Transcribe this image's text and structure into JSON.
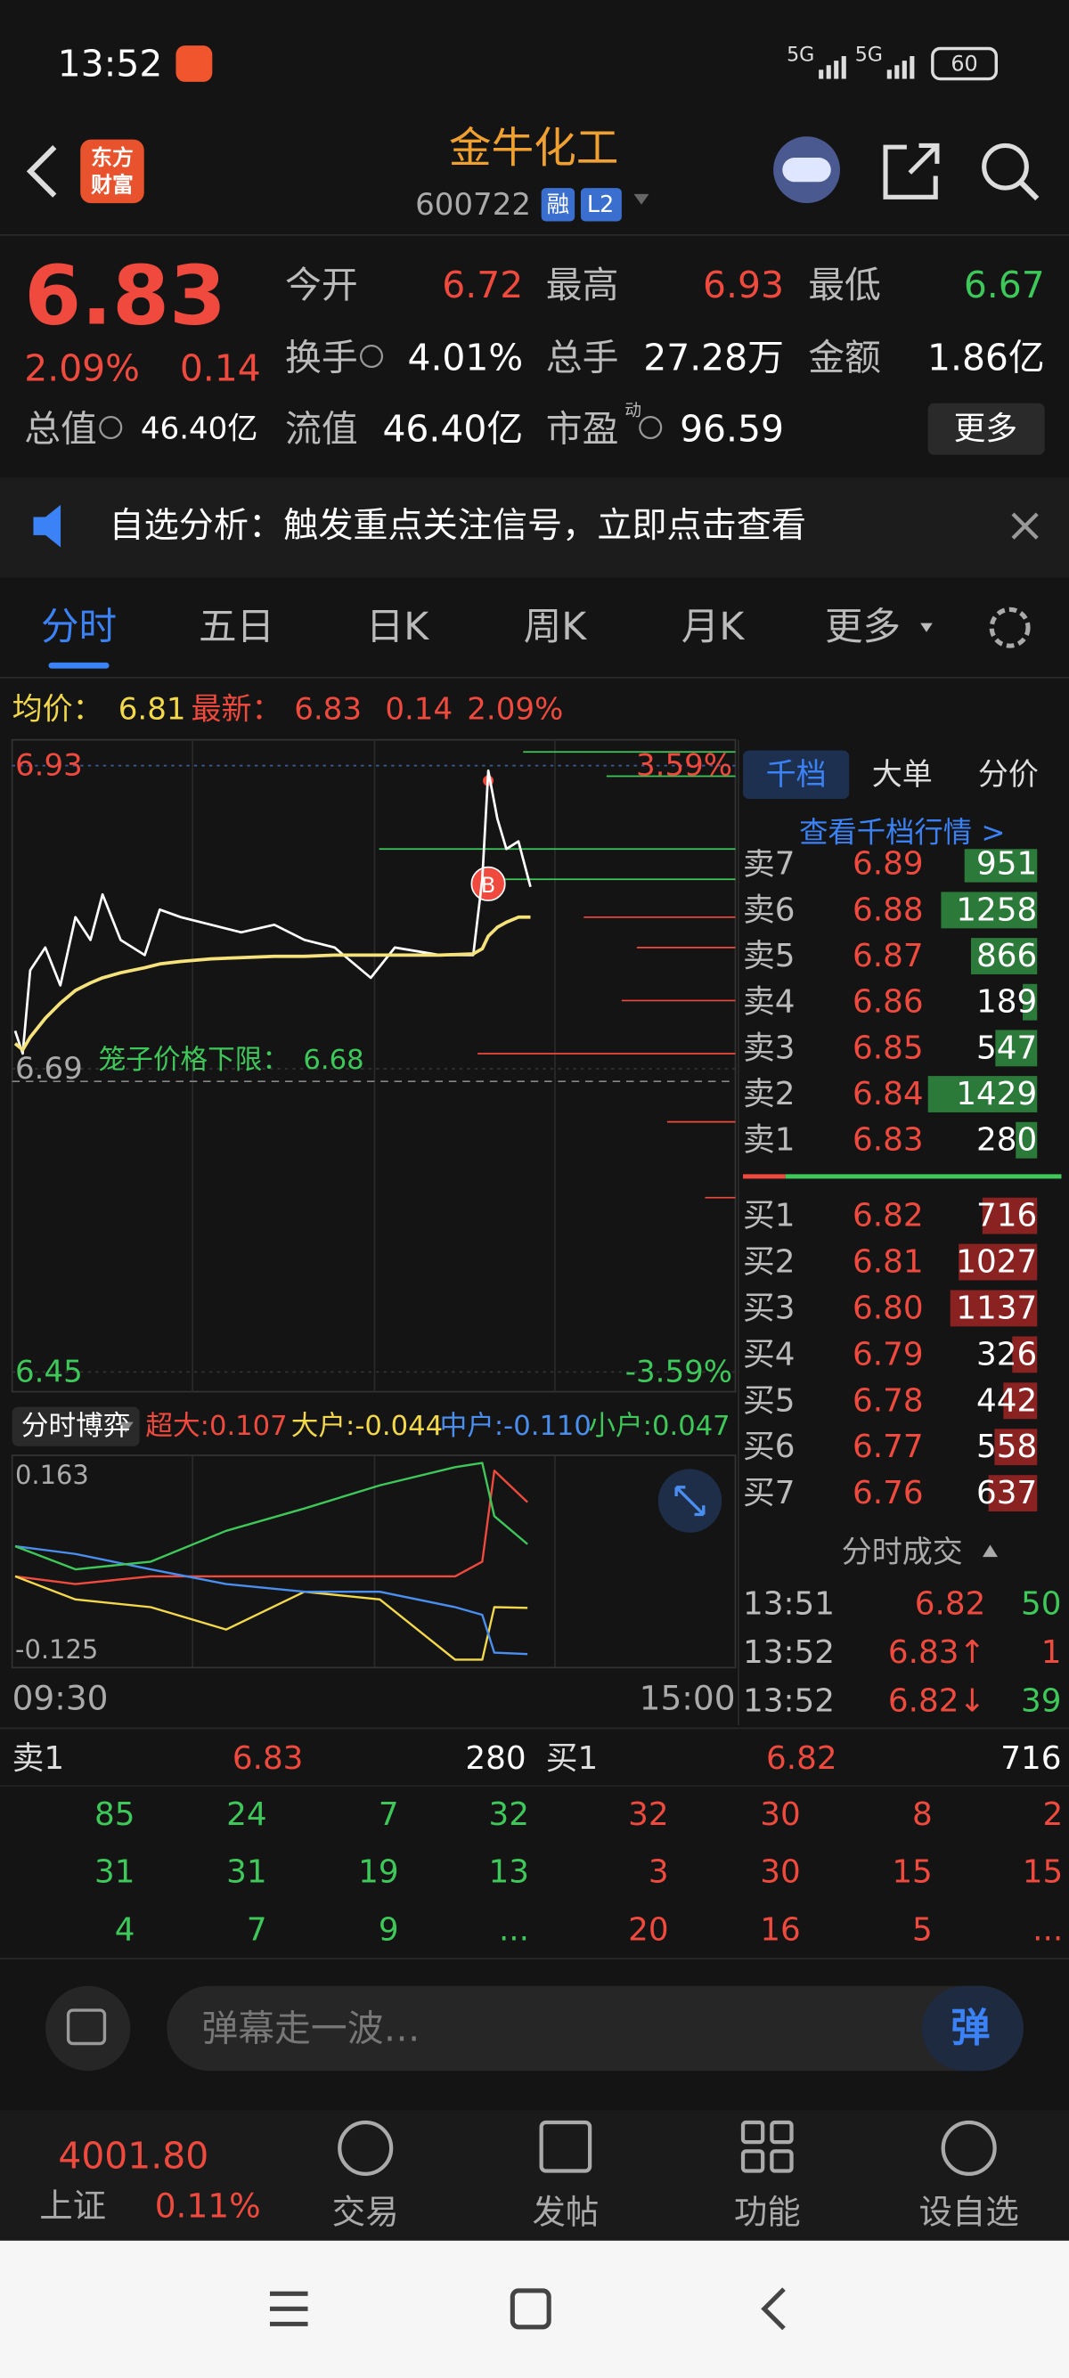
{
  "status_bar": {
    "time": "13:52",
    "network": [
      "5G",
      "5G"
    ],
    "battery": "60"
  },
  "header": {
    "logo": [
      "东方",
      "财富"
    ],
    "title": "金牛化工",
    "code": "600722",
    "badges": [
      "融",
      "L2"
    ]
  },
  "quote": {
    "price": "6.83",
    "change_pct": "2.09%",
    "change": "0.14",
    "fields": [
      {
        "label": "今开",
        "value": "6.72",
        "color": "#f04a3e"
      },
      {
        "label": "最高",
        "value": "6.93",
        "color": "#f04a3e"
      },
      {
        "label": "最低",
        "value": "6.67",
        "color": "#3ec85a"
      },
      {
        "label": "换手",
        "value": "4.01%",
        "color": "#ffffff",
        "info": true
      },
      {
        "label": "总手",
        "value": "27.28万",
        "color": "#ffffff"
      },
      {
        "label": "金额",
        "value": "1.86亿",
        "color": "#ffffff"
      },
      {
        "label": "总值",
        "value": "46.40亿",
        "color": "#ffffff",
        "info": true
      },
      {
        "label": "流值",
        "value": "46.40亿",
        "color": "#ffffff"
      },
      {
        "label": "市盈",
        "sup": "动",
        "value": "96.59",
        "color": "#ffffff",
        "info": true
      }
    ],
    "more": "更多"
  },
  "notice": "自选分析：触发重点关注信号，立即点击查看",
  "tabs": {
    "items": [
      "分时",
      "五日",
      "日K",
      "周K",
      "月K",
      "更多"
    ],
    "active": 0
  },
  "summary": [
    {
      "text": "均价：",
      "color": "#f2d84a"
    },
    {
      "text": "6.81",
      "color": "#f2d84a"
    },
    {
      "text": "最新：",
      "color": "#f04a3e"
    },
    {
      "text": "6.83",
      "color": "#f04a3e"
    },
    {
      "text": "0.14",
      "color": "#f04a3e"
    },
    {
      "text": "2.09%",
      "color": "#f04a3e"
    }
  ],
  "price_chart": {
    "type": "line",
    "xlim": [
      0,
      240
    ],
    "x": [
      1,
      3.5,
      6,
      11,
      16,
      21,
      26,
      30,
      36,
      44,
      49,
      56,
      66,
      76,
      87,
      97,
      107,
      119,
      127,
      142,
      153,
      156,
      158,
      161,
      164,
      168,
      172
    ],
    "ylim": [
      6.45,
      6.93
    ],
    "yticks": [
      6.45,
      6.69,
      6.93
    ],
    "y2lim": [
      -3.59,
      3.59
    ],
    "y2ticks": [
      {
        "value": -3.59,
        "label": "-3.59%"
      },
      {
        "value": 3.59,
        "label": "3.59%"
      }
    ],
    "series": [
      {
        "color": "#ffffff",
        "values": [
          6.72,
          6.702,
          6.768,
          6.786,
          6.756,
          6.81,
          6.792,
          6.828,
          6.792,
          6.78,
          6.816,
          6.81,
          6.804,
          6.798,
          6.804,
          6.792,
          6.786,
          6.762,
          6.786,
          6.78,
          6.78,
          6.84,
          6.926,
          6.888,
          6.864,
          6.87,
          6.834
        ]
      },
      {
        "color": "#f5e27a",
        "values": [
          6.71,
          6.705,
          6.715,
          6.73,
          6.742,
          6.752,
          6.758,
          6.762,
          6.766,
          6.77,
          6.773,
          6.775,
          6.777,
          6.778,
          6.779,
          6.779,
          6.78,
          6.78,
          6.78,
          6.78,
          6.781,
          6.785,
          6.795,
          6.802,
          6.806,
          6.81,
          6.81
        ]
      }
    ],
    "price_limit": {
      "label": "笼子价格下限：",
      "value": 6.68
    },
    "marker": "B"
  },
  "flow_chart": {
    "type": "line",
    "title": "分时博弈",
    "xlim": [
      0,
      240
    ],
    "xticks": [
      {
        "value": 0,
        "label": "09:30"
      },
      {
        "value": 240,
        "label": "15:00"
      }
    ],
    "x": [
      1,
      21,
      46,
      71,
      97,
      122,
      147,
      156,
      160,
      171
    ],
    "ylim": [
      -0.125,
      0.163
    ],
    "yticks": [
      -0.125,
      0.163
    ],
    "series": [
      {
        "label": "超大:0.107",
        "color": "#f04a3e",
        "values": [
          0.001,
          -0.01,
          0.001,
          0.001,
          0.001,
          0.001,
          0.001,
          0.022,
          0.152,
          0.107
        ]
      },
      {
        "label": "大户:-0.044",
        "color": "#f2d84a",
        "values": [
          0.001,
          -0.032,
          -0.043,
          -0.075,
          -0.021,
          -0.032,
          -0.118,
          -0.118,
          -0.043,
          -0.044
        ]
      },
      {
        "label": "中户:-0.110",
        "color": "#4a8ef0",
        "values": [
          0.044,
          0.033,
          0.011,
          -0.01,
          -0.021,
          -0.021,
          -0.043,
          -0.054,
          -0.108,
          -0.11
        ]
      },
      {
        "label": "小户:0.047",
        "color": "#3ec85a",
        "values": [
          0.044,
          0.011,
          0.022,
          0.066,
          0.098,
          0.131,
          0.157,
          0.163,
          0.087,
          0.047
        ]
      }
    ]
  },
  "order_book": {
    "tabs": [
      "千档",
      "大单",
      "分价"
    ],
    "link": "查看千档行情 >",
    "sell": [
      {
        "label": "卖7",
        "price": "6.89",
        "volume": 951
      },
      {
        "label": "卖6",
        "price": "6.88",
        "volume": 1258
      },
      {
        "label": "卖5",
        "price": "6.87",
        "volume": 866
      },
      {
        "label": "卖4",
        "price": "6.86",
        "volume": 189
      },
      {
        "label": "卖3",
        "price": "6.85",
        "volume": 547
      },
      {
        "label": "卖2",
        "price": "6.84",
        "volume": 1429
      },
      {
        "label": "卖1",
        "price": "6.83",
        "volume": 280
      }
    ],
    "buy": [
      {
        "label": "买1",
        "price": "6.82",
        "volume": 716
      },
      {
        "label": "买2",
        "price": "6.81",
        "volume": 1027
      },
      {
        "label": "买3",
        "price": "6.80",
        "volume": 1137
      },
      {
        "label": "买4",
        "price": "6.79",
        "volume": 326
      },
      {
        "label": "买5",
        "price": "6.78",
        "volume": 442
      },
      {
        "label": "买6",
        "price": "6.77",
        "volume": 558
      },
      {
        "label": "买7",
        "price": "6.76",
        "volume": 637
      }
    ]
  },
  "trades": {
    "title": "分时成交",
    "rows": [
      {
        "time": "13:51",
        "price": "6.82",
        "volume": "50",
        "volume_color": "#3ec85a"
      },
      {
        "time": "13:52",
        "price": "6.83↑",
        "volume": "1",
        "volume_color": "#f04a3e"
      },
      {
        "time": "13:52",
        "price": "6.82↓",
        "volume": "39",
        "volume_color": "#3ec85a"
      }
    ]
  },
  "queue": {
    "sell": {
      "label": "卖1",
      "price": "6.83",
      "volume": "280",
      "orders": [
        [
          "85",
          "24",
          "7",
          "32"
        ],
        [
          "31",
          "31",
          "19",
          "13"
        ],
        [
          "4",
          "7",
          "9",
          "..."
        ]
      ]
    },
    "buy": {
      "label": "买1",
      "price": "6.82",
      "volume": "716",
      "orders": [
        [
          "32",
          "30",
          "8",
          "2"
        ],
        [
          "3",
          "30",
          "15",
          "15"
        ],
        [
          "20",
          "16",
          "5",
          "..."
        ]
      ]
    }
  },
  "comment": {
    "placeholder": "弹幕走一波…",
    "button": "弹"
  },
  "bottom_nav": {
    "index": {
      "value": "4001.80",
      "name": "上证",
      "change": "0.11%"
    },
    "items": [
      "交易",
      "发帖",
      "功能",
      "设自选"
    ]
  }
}
